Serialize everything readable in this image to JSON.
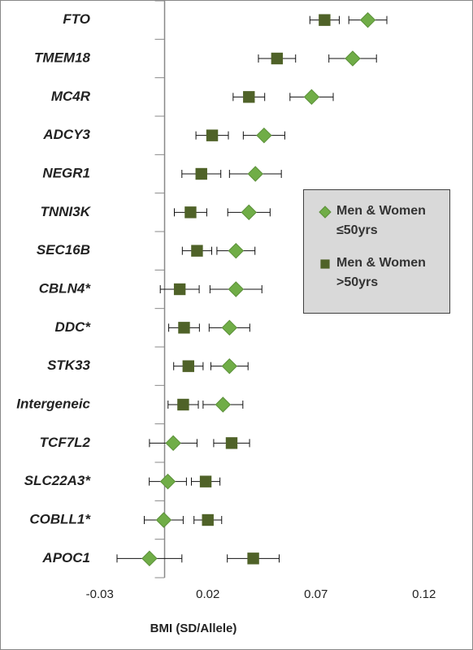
{
  "chart_data": {
    "type": "forest",
    "categories": [
      "FTO",
      "TMEM18",
      "MC4R",
      "ADCY3",
      "NEGR1",
      "TNNI3K",
      "SEC16B",
      "CBLN4*",
      "DDC*",
      "STK33",
      "Intergeneic",
      "TCF7L2",
      "SLC22A3*",
      "COBLL1*",
      "APOC1"
    ],
    "series": [
      {
        "name": "Men & Women ≤50yrs",
        "color": "#70ad47",
        "marker": "diamond",
        "values": [
          0.094,
          0.087,
          0.068,
          0.046,
          0.042,
          0.039,
          0.033,
          0.033,
          0.03,
          0.03,
          0.027,
          0.004,
          0.0015,
          -0.0004,
          -0.007
        ],
        "errors": [
          0.0088,
          0.011,
          0.01,
          0.0096,
          0.012,
          0.0098,
          0.0088,
          0.012,
          0.0094,
          0.0086,
          0.0092,
          0.011,
          0.0086,
          0.009,
          0.015
        ]
      },
      {
        "name": "Men & Women >50yrs",
        "color": "#4f6228",
        "marker": "square",
        "values": [
          0.074,
          0.052,
          0.039,
          0.022,
          0.017,
          0.012,
          0.015,
          0.007,
          0.009,
          0.011,
          0.0086,
          0.031,
          0.019,
          0.02,
          0.041
        ],
        "errors": [
          0.0068,
          0.0086,
          0.0073,
          0.0075,
          0.009,
          0.0075,
          0.0068,
          0.009,
          0.0071,
          0.0068,
          0.007,
          0.0083,
          0.0066,
          0.0064,
          0.012
        ]
      }
    ],
    "xlim": [
      -0.072,
      0.131
    ],
    "xticks": [
      -0.03,
      0.02,
      0.07,
      0.12
    ],
    "xlabel": "BMI (SD/Allele)",
    "legend": "right"
  }
}
